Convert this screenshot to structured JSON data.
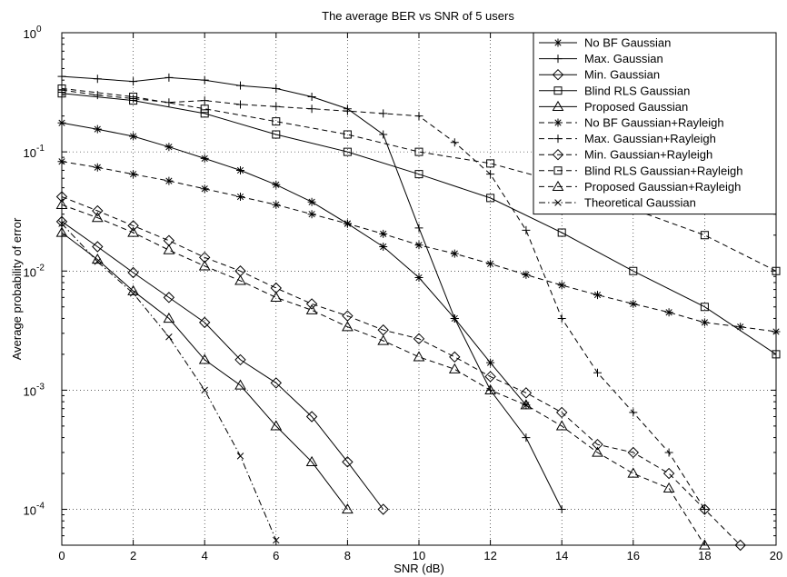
{
  "chart_data": {
    "type": "line",
    "title": "The average BER vs SNR of 5 users",
    "xlabel": "SNR (dB)",
    "ylabel": "Average probability of error",
    "xlim": [
      0,
      20
    ],
    "ylim": [
      5e-05,
      1
    ],
    "yscale": "log",
    "grid": true,
    "legend_position": "top-right",
    "x_ticks": [
      "0",
      "2",
      "4",
      "6",
      "8",
      "10",
      "12",
      "14",
      "16",
      "18",
      "20"
    ],
    "y_ticks": [
      {
        "base": "10",
        "exp": "0",
        "value": 1
      },
      {
        "base": "10",
        "exp": "-1",
        "value": 0.1
      },
      {
        "base": "10",
        "exp": "-2",
        "value": 0.01
      },
      {
        "base": "10",
        "exp": "-3",
        "value": 0.001
      },
      {
        "base": "10",
        "exp": "-4",
        "value": 0.0001
      }
    ],
    "series": [
      {
        "name": "No BF Gaussian",
        "marker": "star",
        "dash": "solid",
        "x": [
          0,
          1,
          2,
          3,
          4,
          5,
          6,
          7,
          8,
          9,
          10,
          11,
          12,
          13
        ],
        "y": [
          0.175,
          0.155,
          0.135,
          0.11,
          0.088,
          0.07,
          0.053,
          0.038,
          0.025,
          0.016,
          0.0088,
          0.004,
          0.0017,
          0.00075
        ]
      },
      {
        "name": "Max. Gaussian",
        "marker": "plus",
        "dash": "solid",
        "x": [
          0,
          1,
          2,
          3,
          4,
          5,
          6,
          7,
          8,
          9,
          10,
          11,
          12,
          13,
          14
        ],
        "y": [
          0.43,
          0.41,
          0.39,
          0.42,
          0.4,
          0.36,
          0.34,
          0.29,
          0.23,
          0.14,
          0.023,
          0.004,
          0.001,
          0.0004,
          0.0001
        ]
      },
      {
        "name": "Min. Gaussian",
        "marker": "diamond",
        "dash": "solid",
        "x": [
          0,
          1,
          2,
          3,
          4,
          5,
          6,
          7,
          8,
          9
        ],
        "y": [
          0.026,
          0.016,
          0.0097,
          0.006,
          0.0037,
          0.0018,
          0.00115,
          0.0006,
          0.00025,
          0.0001
        ]
      },
      {
        "name": "Blind RLS Gaussian",
        "marker": "square",
        "dash": "solid",
        "x": [
          0,
          2,
          4,
          6,
          8,
          10,
          12,
          14,
          16,
          18,
          20
        ],
        "y": [
          0.31,
          0.27,
          0.21,
          0.14,
          0.1,
          0.065,
          0.041,
          0.021,
          0.01,
          0.005,
          0.002
        ]
      },
      {
        "name": "Proposed Gaussian",
        "marker": "triangle",
        "dash": "solid",
        "x": [
          0,
          1,
          2,
          3,
          4,
          5,
          6,
          7,
          8
        ],
        "y": [
          0.021,
          0.0125,
          0.0068,
          0.004,
          0.0018,
          0.0011,
          0.0005,
          0.00025,
          0.0001
        ]
      },
      {
        "name": "No BF Gaussian+Rayleigh",
        "marker": "star",
        "dash": "dashed",
        "x": [
          0,
          1,
          2,
          3,
          4,
          5,
          6,
          7,
          8,
          9,
          10,
          11,
          12,
          13,
          14,
          15,
          16,
          17,
          18,
          19,
          20
        ],
        "y": [
          0.083,
          0.074,
          0.065,
          0.057,
          0.049,
          0.042,
          0.036,
          0.03,
          0.025,
          0.0205,
          0.0165,
          0.014,
          0.0115,
          0.0093,
          0.0076,
          0.0063,
          0.0053,
          0.0045,
          0.0037,
          0.0034,
          0.0031
        ]
      },
      {
        "name": "Max. Gaussian+Rayleigh",
        "marker": "plus",
        "dash": "dashed",
        "x": [
          0,
          1,
          2,
          3,
          4,
          5,
          6,
          7,
          8,
          9,
          10,
          11,
          12,
          13,
          14,
          15,
          16,
          17,
          18
        ],
        "y": [
          0.33,
          0.3,
          0.28,
          0.26,
          0.27,
          0.25,
          0.24,
          0.23,
          0.22,
          0.21,
          0.2,
          0.12,
          0.065,
          0.022,
          0.004,
          0.0014,
          0.00065,
          0.0003,
          0.0001
        ]
      },
      {
        "name": "Min. Gaussian+Rayleigh",
        "marker": "diamond",
        "dash": "dashed",
        "x": [
          0,
          1,
          2,
          3,
          4,
          5,
          6,
          7,
          8,
          9,
          10,
          11,
          12,
          13,
          14,
          15,
          16,
          17,
          18,
          19
        ],
        "y": [
          0.042,
          0.032,
          0.024,
          0.018,
          0.013,
          0.01,
          0.0072,
          0.0053,
          0.0042,
          0.0032,
          0.0027,
          0.0019,
          0.0013,
          0.00095,
          0.00065,
          0.00035,
          0.0003,
          0.0002,
          0.0001,
          5e-05
        ]
      },
      {
        "name": "Blind RLS Gaussian+Rayleigh",
        "marker": "square",
        "dash": "dashed",
        "x": [
          0,
          2,
          4,
          6,
          8,
          10,
          12,
          14,
          16,
          18,
          20
        ],
        "y": [
          0.34,
          0.29,
          0.23,
          0.18,
          0.14,
          0.1,
          0.08,
          0.055,
          0.033,
          0.02,
          0.01
        ]
      },
      {
        "name": "Proposed Gaussian+Rayleigh",
        "marker": "triangle",
        "dash": "dashed",
        "x": [
          0,
          1,
          2,
          3,
          4,
          5,
          6,
          7,
          8,
          9,
          10,
          11,
          12,
          13,
          14,
          15,
          16,
          17,
          18
        ],
        "y": [
          0.036,
          0.028,
          0.021,
          0.015,
          0.011,
          0.0083,
          0.006,
          0.0047,
          0.0034,
          0.0026,
          0.0019,
          0.0015,
          0.001,
          0.00075,
          0.0005,
          0.0003,
          0.0002,
          0.00015,
          5e-05
        ]
      },
      {
        "name": "Theoretical Gaussian",
        "marker": "x",
        "dash": "dashdot",
        "x": [
          0,
          1,
          2,
          3,
          4,
          5,
          6
        ],
        "y": [
          0.025,
          0.012,
          0.0065,
          0.0028,
          0.001,
          0.00028,
          5.5e-05
        ]
      }
    ]
  }
}
